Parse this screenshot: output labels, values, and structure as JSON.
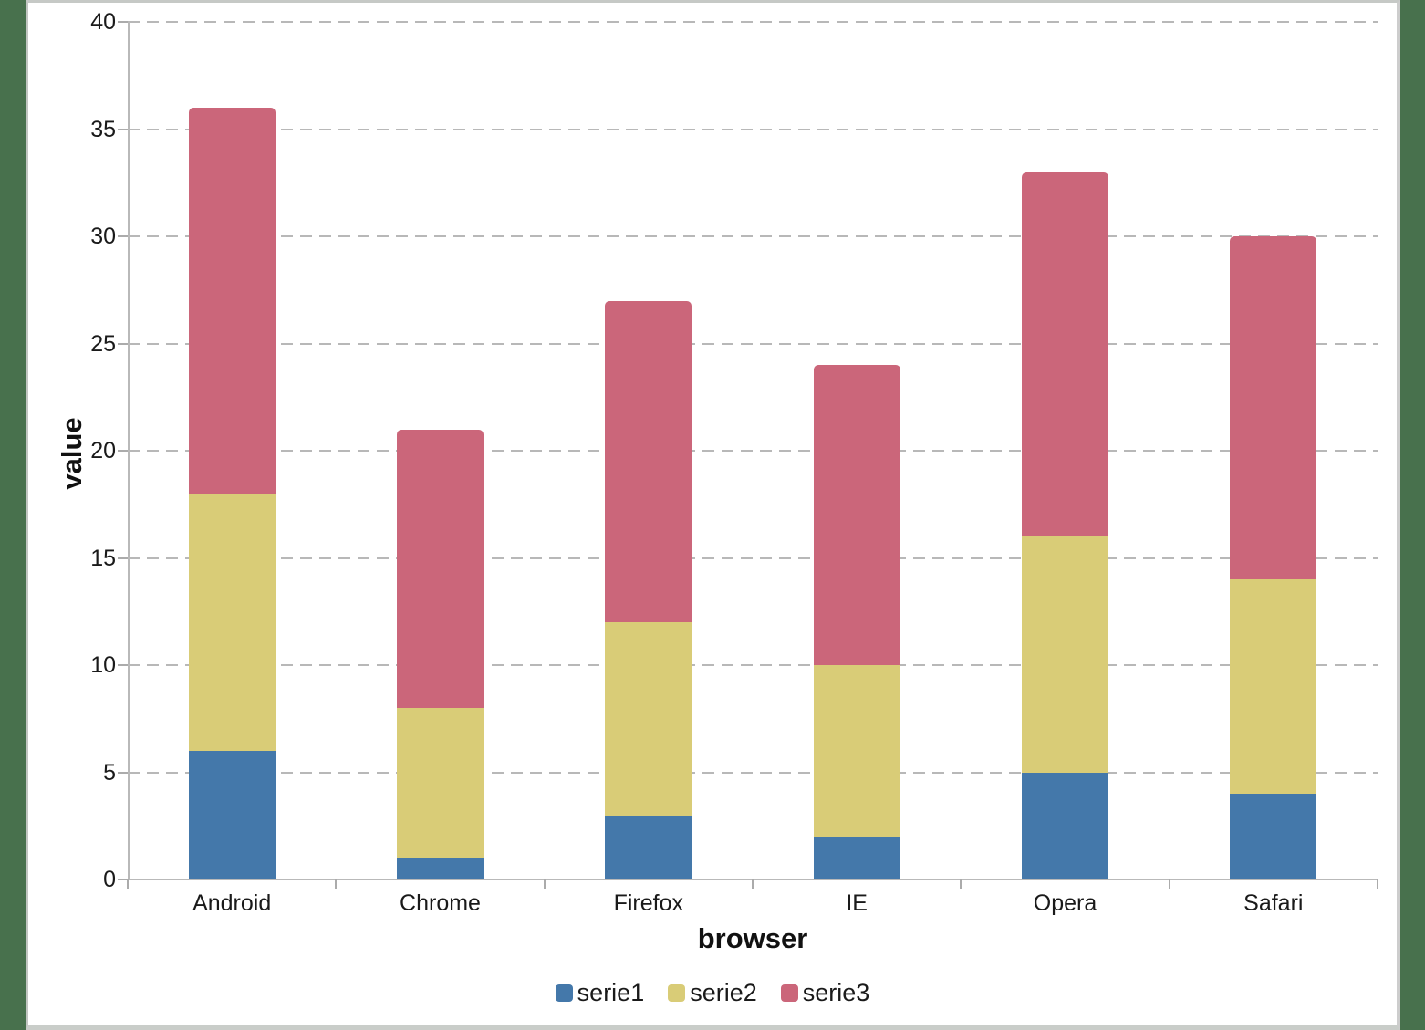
{
  "chart_data": {
    "type": "bar",
    "stacked": true,
    "title": "",
    "xlabel": "browser",
    "ylabel": "value",
    "categories": [
      "Android",
      "Chrome",
      "Firefox",
      "IE",
      "Opera",
      "Safari"
    ],
    "series": [
      {
        "name": "serie1",
        "color": "#4478AA",
        "values": [
          6,
          1,
          3,
          2,
          5,
          4
        ]
      },
      {
        "name": "serie2",
        "color": "#D9CC77",
        "values": [
          12,
          7,
          9,
          8,
          11,
          10
        ]
      },
      {
        "name": "serie3",
        "color": "#CB667A",
        "values": [
          18,
          13,
          15,
          14,
          17,
          16
        ]
      }
    ],
    "stack_totals": [
      36,
      21,
      27,
      24,
      33,
      30
    ],
    "ylim": [
      0,
      40
    ],
    "ytick_step": 5,
    "yticks": [
      0,
      5,
      10,
      15,
      20,
      25,
      30,
      35,
      40
    ],
    "ytick_labels": [
      "0",
      "5",
      "10",
      "15",
      "20",
      "25",
      "30",
      "35",
      "40"
    ],
    "grid": "horizontal-dashed",
    "legend_position": "bottom-center",
    "legend_entries": [
      "serie1",
      "serie2",
      "serie3"
    ]
  },
  "colors": {
    "page_background": "#48714D",
    "card_background": "#FFFFFF",
    "card_border": "#C6C9C6",
    "grid_line": "#B8B8B8",
    "axis_line": "#B9B9B9",
    "text": "#1A1A1A"
  }
}
